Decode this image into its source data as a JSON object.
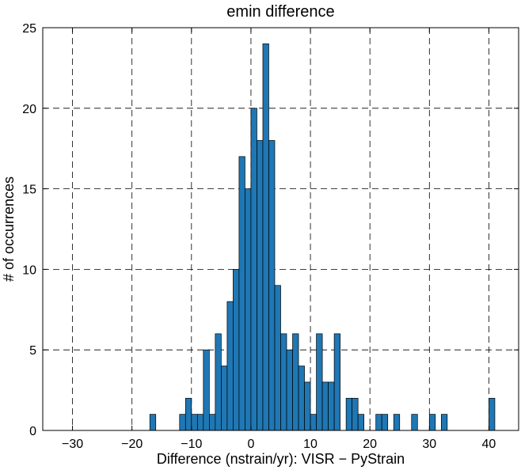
{
  "chart_data": {
    "type": "bar",
    "title": "emin difference",
    "xlabel": "Difference (nstrain/yr): VISR − PyStrain",
    "ylabel": "# of occurrences",
    "xlim": [
      -35,
      45
    ],
    "ylim": [
      0,
      25
    ],
    "xticks": [
      -30,
      -20,
      -10,
      0,
      10,
      20,
      30,
      40
    ],
    "xtick_labels": [
      "−30",
      "−20",
      "−10",
      "0",
      "10",
      "20",
      "30",
      "40"
    ],
    "yticks": [
      0,
      5,
      10,
      15,
      20,
      25
    ],
    "ytick_labels": [
      "0",
      "5",
      "10",
      "15",
      "20",
      "25"
    ],
    "grid": true,
    "bar_color": "#1f77b4",
    "bin_width": 1,
    "bins": [
      {
        "x": -17,
        "count": 1
      },
      {
        "x": -12,
        "count": 1
      },
      {
        "x": -11,
        "count": 2
      },
      {
        "x": -10,
        "count": 1
      },
      {
        "x": -9,
        "count": 1
      },
      {
        "x": -8,
        "count": 5
      },
      {
        "x": -7,
        "count": 1
      },
      {
        "x": -6,
        "count": 6
      },
      {
        "x": -5,
        "count": 4
      },
      {
        "x": -4,
        "count": 8
      },
      {
        "x": -3,
        "count": 10
      },
      {
        "x": -2,
        "count": 17
      },
      {
        "x": -1,
        "count": 15
      },
      {
        "x": 0,
        "count": 20
      },
      {
        "x": 1,
        "count": 18
      },
      {
        "x": 2,
        "count": 24
      },
      {
        "x": 3,
        "count": 18
      },
      {
        "x": 4,
        "count": 9
      },
      {
        "x": 5,
        "count": 6
      },
      {
        "x": 6,
        "count": 5
      },
      {
        "x": 7,
        "count": 6
      },
      {
        "x": 8,
        "count": 4
      },
      {
        "x": 9,
        "count": 3
      },
      {
        "x": 10,
        "count": 1
      },
      {
        "x": 11,
        "count": 6
      },
      {
        "x": 12,
        "count": 3
      },
      {
        "x": 13,
        "count": 3
      },
      {
        "x": 14,
        "count": 6
      },
      {
        "x": 16,
        "count": 2
      },
      {
        "x": 17,
        "count": 2
      },
      {
        "x": 18,
        "count": 1
      },
      {
        "x": 21,
        "count": 1
      },
      {
        "x": 22,
        "count": 1
      },
      {
        "x": 24,
        "count": 1
      },
      {
        "x": 27,
        "count": 1
      },
      {
        "x": 30,
        "count": 1
      },
      {
        "x": 32,
        "count": 1
      },
      {
        "x": 40,
        "count": 2
      }
    ]
  }
}
